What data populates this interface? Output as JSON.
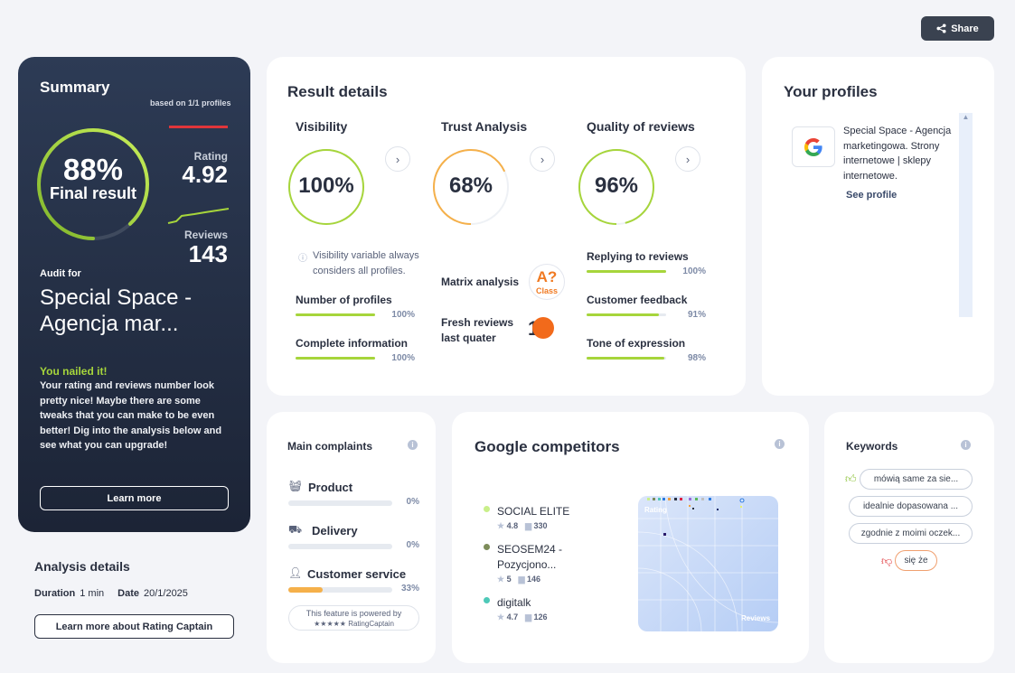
{
  "share": {
    "label": "Share"
  },
  "summary": {
    "title": "Summary",
    "based_on": "based on 1/1 profiles",
    "final_pct": "88%",
    "final_label": "Final result",
    "final_value": 0.88,
    "rating_label": "Rating",
    "rating_value": "4.92",
    "reviews_label": "Reviews",
    "reviews_value": "143",
    "audit_for": "Audit for",
    "audit_name": "Special Space - Agencja mar...",
    "nailed_title": "You nailed it!",
    "nailed_text": "Your rating and reviews number look pretty nice! Maybe there are some tweaks that you can make to be even better! Dig into the analysis below and see what you can upgrade!",
    "learn_more": "Learn more"
  },
  "analysis": {
    "title": "Analysis details",
    "duration_label": "Duration",
    "duration_value": "1 min",
    "date_label": "Date",
    "date_value": "20/1/2025",
    "learn_more": "Learn more about Rating Captain"
  },
  "result_details": {
    "title": "Result details",
    "visibility": {
      "title": "Visibility",
      "pct": "100%",
      "value": 1.0,
      "note": "Visibility variable always considers all profiles.",
      "metrics": [
        {
          "label": "Number of profiles",
          "pct": "100%",
          "value": 1.0
        },
        {
          "label": "Complete information",
          "pct": "100%",
          "value": 1.0
        }
      ]
    },
    "trust": {
      "title": "Trust Analysis",
      "pct": "68%",
      "value": 0.68,
      "matrix_label": "Matrix analysis",
      "matrix_grade": "A?",
      "matrix_class": "Class",
      "fresh_label": "Fresh reviews last quater",
      "fresh_value": "1"
    },
    "quality": {
      "title": "Quality of reviews",
      "pct": "96%",
      "value": 0.96,
      "metrics": [
        {
          "label": "Replying to reviews",
          "pct": "100%",
          "value": 1.0
        },
        {
          "label": "Customer feedback",
          "pct": "91%",
          "value": 0.91
        },
        {
          "label": "Tone of expression",
          "pct": "98%",
          "value": 0.98
        }
      ]
    }
  },
  "profiles": {
    "title": "Your profiles",
    "name": "Special Space - Agencja marketingowa. Strony internetowe | sklepy internetowe.",
    "see_profile": "See profile"
  },
  "complaints": {
    "title": "Main complaints",
    "items": [
      {
        "label": "Product",
        "pct": "0%",
        "value": 0.0
      },
      {
        "label": "Delivery",
        "pct": "0%",
        "value": 0.0
      },
      {
        "label": "Customer service",
        "pct": "33%",
        "value": 0.33
      }
    ],
    "powered_line1": "This feature is powered by",
    "powered_line2": "★★★★★ RatingCaptain"
  },
  "competitors": {
    "title": "Google competitors",
    "items": [
      {
        "name": "SOCIAL ELITE",
        "rating": "4.8",
        "reviews": "330",
        "color": "#c9ef8a"
      },
      {
        "name": "SEOSEM24 - Pozycjono...",
        "rating": "5",
        "reviews": "146",
        "color": "#7d8c5a"
      },
      {
        "name": "digitalk",
        "rating": "4.7",
        "reviews": "126",
        "color": "#4ec9b8"
      }
    ],
    "map_rating_label": "Rating",
    "map_reviews_label": "Reviews"
  },
  "keywords": {
    "title": "Keywords",
    "positive": [
      "mówią same za sie...",
      "idealnie dopasowana ...",
      "zgodnie z moimi oczek..."
    ],
    "negative": [
      "się że"
    ]
  },
  "colors": {
    "accent_green": "#a6d53b",
    "trust_orange": "#f5b04a",
    "fresh_orange": "#f26a1b",
    "dark_card": "#243049"
  }
}
